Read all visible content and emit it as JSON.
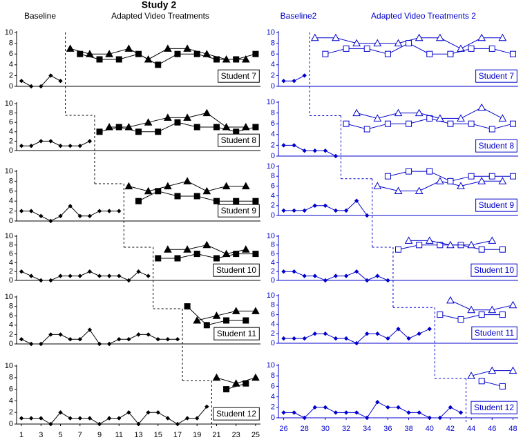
{
  "labels": {
    "title": "Study 2",
    "left_baseline": "Baseline",
    "left_treatment": "Adapted Video Treatments",
    "right_baseline": "Baseline2",
    "right_treatment": "Adapted Video Treatments 2"
  },
  "chart_data": [
    {
      "type": "line",
      "title": "Student 7",
      "color": "#000000",
      "xlim": [
        0.5,
        25.5
      ],
      "ylim": [
        0,
        10
      ],
      "yticks": [
        0,
        2,
        4,
        6,
        8,
        10
      ],
      "phase_change": 5.5,
      "series": [
        {
          "marker": "diamond",
          "filled": true,
          "x": [
            1,
            2,
            3,
            4,
            5
          ],
          "values": [
            1,
            0,
            0,
            2,
            1
          ]
        },
        {
          "marker": "triangle",
          "filled": true,
          "x": [
            6,
            8,
            10,
            12,
            14,
            16,
            18,
            20,
            22,
            24
          ],
          "values": [
            7,
            6,
            6,
            7,
            5,
            7,
            7,
            6,
            5,
            5
          ]
        },
        {
          "marker": "square",
          "filled": true,
          "x": [
            7,
            9,
            11,
            13,
            15,
            17,
            19,
            21,
            23,
            25
          ],
          "values": [
            6,
            5,
            5,
            6,
            4,
            6,
            6,
            5,
            5,
            6
          ]
        }
      ]
    },
    {
      "type": "line",
      "title": "Student 8",
      "color": "#000000",
      "xlim": [
        0.5,
        25.5
      ],
      "ylim": [
        0,
        10
      ],
      "yticks": [
        0,
        2,
        4,
        6,
        8,
        10
      ],
      "phase_change": 8.5,
      "series": [
        {
          "marker": "diamond",
          "filled": true,
          "x": [
            1,
            2,
            3,
            4,
            5,
            6,
            7,
            8
          ],
          "values": [
            1,
            1,
            2,
            2,
            1,
            1,
            1,
            2
          ]
        },
        {
          "marker": "square",
          "filled": true,
          "x": [
            9,
            11,
            13,
            15,
            17,
            19,
            21,
            23,
            25
          ],
          "values": [
            4,
            5,
            4,
            4,
            6,
            5,
            5,
            4,
            5
          ]
        },
        {
          "marker": "triangle",
          "filled": true,
          "x": [
            10,
            12,
            14,
            16,
            18,
            20,
            22,
            24
          ],
          "values": [
            5,
            5,
            6,
            7,
            7,
            8,
            5,
            5
          ]
        }
      ]
    },
    {
      "type": "line",
      "title": "Student 9",
      "color": "#000000",
      "xlim": [
        0.5,
        25.5
      ],
      "ylim": [
        0,
        10
      ],
      "yticks": [
        0,
        2,
        4,
        6,
        8,
        10
      ],
      "phase_change": 11.5,
      "series": [
        {
          "marker": "diamond",
          "filled": true,
          "x": [
            1,
            2,
            3,
            4,
            5,
            6,
            7,
            8,
            9,
            10,
            11
          ],
          "values": [
            2,
            2,
            1,
            0,
            1,
            3,
            1,
            1,
            2,
            2,
            2
          ]
        },
        {
          "marker": "triangle",
          "filled": true,
          "x": [
            12,
            14,
            16,
            18,
            20,
            22,
            24
          ],
          "values": [
            7,
            6,
            7,
            8,
            6,
            7,
            7
          ]
        },
        {
          "marker": "square",
          "filled": true,
          "x": [
            13,
            15,
            17,
            19,
            21,
            23,
            25
          ],
          "values": [
            4,
            6,
            5,
            5,
            4,
            4,
            4
          ]
        }
      ]
    },
    {
      "type": "line",
      "title": "Student 10",
      "color": "#000000",
      "xlim": [
        0.5,
        25.5
      ],
      "ylim": [
        0,
        10
      ],
      "yticks": [
        0,
        2,
        4,
        6,
        8,
        10
      ],
      "phase_change": 14.5,
      "series": [
        {
          "marker": "diamond",
          "filled": true,
          "x": [
            1,
            2,
            3,
            4,
            5,
            6,
            7,
            8,
            9,
            10,
            11,
            12,
            13,
            14
          ],
          "values": [
            2,
            1,
            0,
            0,
            1,
            1,
            1,
            2,
            1,
            1,
            1,
            0,
            2,
            1
          ]
        },
        {
          "marker": "square",
          "filled": true,
          "x": [
            15,
            17,
            19,
            21,
            23,
            25
          ],
          "values": [
            5,
            5,
            6,
            5,
            6,
            6
          ]
        },
        {
          "marker": "triangle",
          "filled": true,
          "x": [
            16,
            18,
            20,
            22,
            24
          ],
          "values": [
            7,
            7,
            8,
            6,
            7
          ]
        }
      ]
    },
    {
      "type": "line",
      "title": "Student 11",
      "color": "#000000",
      "xlim": [
        0.5,
        25.5
      ],
      "ylim": [
        0,
        10
      ],
      "yticks": [
        0,
        2,
        4,
        6,
        8,
        10
      ],
      "phase_change": 17.5,
      "series": [
        {
          "marker": "diamond",
          "filled": true,
          "x": [
            1,
            2,
            3,
            4,
            5,
            6,
            7,
            8,
            9,
            10,
            11,
            12,
            13,
            14,
            15,
            16,
            17
          ],
          "values": [
            1,
            0,
            0,
            2,
            2,
            1,
            1,
            3,
            0,
            0,
            1,
            1,
            2,
            2,
            1,
            1,
            1
          ]
        },
        {
          "marker": "square",
          "filled": true,
          "x": [
            18,
            20,
            22,
            24
          ],
          "values": [
            8,
            4,
            5,
            5
          ]
        },
        {
          "marker": "triangle",
          "filled": true,
          "x": [
            19,
            21,
            23,
            25
          ],
          "values": [
            5,
            6,
            7,
            7
          ]
        }
      ]
    },
    {
      "type": "line",
      "title": "Student 12",
      "color": "#000000",
      "xlim": [
        0.5,
        25.5
      ],
      "ylim": [
        0,
        10
      ],
      "yticks": [
        0,
        2,
        4,
        6,
        8,
        10
      ],
      "xticks": [
        1,
        3,
        5,
        7,
        9,
        11,
        13,
        15,
        17,
        19,
        21,
        23,
        25
      ],
      "phase_change": 20.5,
      "series": [
        {
          "marker": "diamond",
          "filled": true,
          "x": [
            1,
            2,
            3,
            4,
            5,
            6,
            7,
            8,
            9,
            10,
            11,
            12,
            13,
            14,
            15,
            16,
            17,
            18,
            19,
            20
          ],
          "values": [
            1,
            1,
            1,
            0,
            2,
            1,
            1,
            1,
            0,
            1,
            1,
            2,
            0,
            2,
            2,
            1,
            0,
            1,
            1,
            3
          ]
        },
        {
          "marker": "triangle",
          "filled": true,
          "x": [
            21,
            23,
            25
          ],
          "values": [
            8,
            7,
            8
          ]
        },
        {
          "marker": "square",
          "filled": true,
          "x": [
            22,
            24
          ],
          "values": [
            6,
            7
          ]
        }
      ]
    },
    {
      "type": "line",
      "title": "Student 7",
      "color": "#0000cc",
      "xlim": [
        25.5,
        48.5
      ],
      "ylim": [
        0,
        10
      ],
      "yticks": [
        0,
        2,
        4,
        6,
        8,
        10
      ],
      "phase_change": 28.5,
      "series": [
        {
          "marker": "diamond",
          "filled": true,
          "x": [
            26,
            27,
            28
          ],
          "values": [
            1,
            1,
            2
          ]
        },
        {
          "marker": "triangle",
          "filled": false,
          "x": [
            29,
            31,
            33,
            35,
            37,
            39,
            41,
            43,
            45,
            47
          ],
          "values": [
            9,
            9,
            8,
            8,
            8,
            9,
            9,
            7,
            9,
            9
          ]
        },
        {
          "marker": "square",
          "filled": false,
          "x": [
            30,
            32,
            34,
            36,
            38,
            40,
            42,
            44,
            46,
            48
          ],
          "values": [
            6,
            7,
            7,
            6,
            8,
            6,
            6,
            7,
            7,
            6
          ]
        }
      ]
    },
    {
      "type": "line",
      "title": "Student 8",
      "color": "#0000cc",
      "xlim": [
        25.5,
        48.5
      ],
      "ylim": [
        0,
        10
      ],
      "yticks": [
        0,
        2,
        4,
        6,
        8,
        10
      ],
      "phase_change": 31.5,
      "series": [
        {
          "marker": "diamond",
          "filled": true,
          "x": [
            26,
            27,
            28,
            29,
            30,
            31
          ],
          "values": [
            2,
            2,
            1,
            1,
            1,
            0
          ]
        },
        {
          "marker": "square",
          "filled": false,
          "x": [
            32,
            34,
            36,
            38,
            40,
            42,
            44,
            46,
            48
          ],
          "values": [
            6,
            5,
            6,
            6,
            7,
            6,
            6,
            5,
            6
          ]
        },
        {
          "marker": "triangle",
          "filled": false,
          "x": [
            33,
            35,
            37,
            39,
            41,
            43,
            45,
            47
          ],
          "values": [
            8,
            7,
            8,
            8,
            7,
            7,
            9,
            7
          ]
        }
      ]
    },
    {
      "type": "line",
      "title": "Student 9",
      "color": "#0000cc",
      "xlim": [
        25.5,
        48.5
      ],
      "ylim": [
        0,
        10
      ],
      "yticks": [
        0,
        2,
        4,
        6,
        8,
        10
      ],
      "phase_change": 34.5,
      "series": [
        {
          "marker": "diamond",
          "filled": true,
          "x": [
            26,
            27,
            28,
            29,
            30,
            31,
            32,
            33,
            34
          ],
          "values": [
            1,
            1,
            1,
            2,
            2,
            1,
            1,
            3,
            0
          ]
        },
        {
          "marker": "triangle",
          "filled": false,
          "x": [
            35,
            37,
            39,
            41,
            43,
            45,
            47
          ],
          "values": [
            6,
            5,
            5,
            7,
            6,
            7,
            7
          ]
        },
        {
          "marker": "square",
          "filled": false,
          "x": [
            36,
            38,
            40,
            42,
            44,
            46,
            48
          ],
          "values": [
            8,
            9,
            9,
            7,
            8,
            8,
            8
          ]
        }
      ]
    },
    {
      "type": "line",
      "title": "Student 10",
      "color": "#0000cc",
      "xlim": [
        25.5,
        48.5
      ],
      "ylim": [
        0,
        10
      ],
      "yticks": [
        0,
        2,
        4,
        6,
        8,
        10
      ],
      "phase_change": 36.5,
      "series": [
        {
          "marker": "diamond",
          "filled": true,
          "x": [
            26,
            27,
            28,
            29,
            30,
            31,
            32,
            33,
            34,
            35,
            36
          ],
          "values": [
            2,
            2,
            1,
            1,
            0,
            1,
            1,
            2,
            0,
            1,
            0
          ]
        },
        {
          "marker": "square",
          "filled": false,
          "x": [
            37,
            39,
            41,
            43,
            45,
            47
          ],
          "values": [
            7,
            8,
            8,
            8,
            7,
            7
          ]
        },
        {
          "marker": "triangle",
          "filled": false,
          "x": [
            38,
            40,
            42,
            44,
            46
          ],
          "values": [
            9,
            9,
            8,
            8,
            9
          ]
        }
      ]
    },
    {
      "type": "line",
      "title": "Student 11",
      "color": "#0000cc",
      "xlim": [
        25.5,
        48.5
      ],
      "ylim": [
        0,
        10
      ],
      "yticks": [
        0,
        2,
        4,
        6,
        8,
        10
      ],
      "phase_change": 40.5,
      "series": [
        {
          "marker": "diamond",
          "filled": true,
          "x": [
            26,
            27,
            28,
            29,
            30,
            31,
            32,
            33,
            34,
            35,
            36,
            37,
            38,
            39,
            40
          ],
          "values": [
            1,
            1,
            1,
            2,
            2,
            1,
            1,
            0,
            2,
            2,
            1,
            3,
            1,
            2,
            3
          ]
        },
        {
          "marker": "square",
          "filled": false,
          "x": [
            41,
            43,
            45,
            47
          ],
          "values": [
            6,
            5,
            6,
            6
          ]
        },
        {
          "marker": "triangle",
          "filled": false,
          "x": [
            42,
            44,
            46,
            48
          ],
          "values": [
            9,
            7,
            7,
            8
          ]
        }
      ]
    },
    {
      "type": "line",
      "title": "Student 12",
      "color": "#0000cc",
      "xlim": [
        25.5,
        48.5
      ],
      "ylim": [
        0,
        10
      ],
      "yticks": [
        0,
        2,
        4,
        6,
        8,
        10
      ],
      "xticks": [
        26,
        28,
        30,
        32,
        34,
        36,
        38,
        40,
        42,
        44,
        46,
        48
      ],
      "phase_change": 43.5,
      "series": [
        {
          "marker": "diamond",
          "filled": true,
          "x": [
            26,
            27,
            28,
            29,
            30,
            31,
            32,
            33,
            34,
            35,
            36,
            37,
            38,
            39,
            40,
            41,
            42,
            43
          ],
          "values": [
            1,
            1,
            0,
            2,
            2,
            1,
            1,
            1,
            0,
            3,
            2,
            2,
            1,
            1,
            0,
            0,
            2,
            1
          ]
        },
        {
          "marker": "triangle",
          "filled": false,
          "x": [
            44,
            46,
            48
          ],
          "values": [
            8,
            9,
            9
          ]
        },
        {
          "marker": "square",
          "filled": false,
          "x": [
            45,
            47
          ],
          "values": [
            7,
            6
          ]
        }
      ]
    }
  ]
}
